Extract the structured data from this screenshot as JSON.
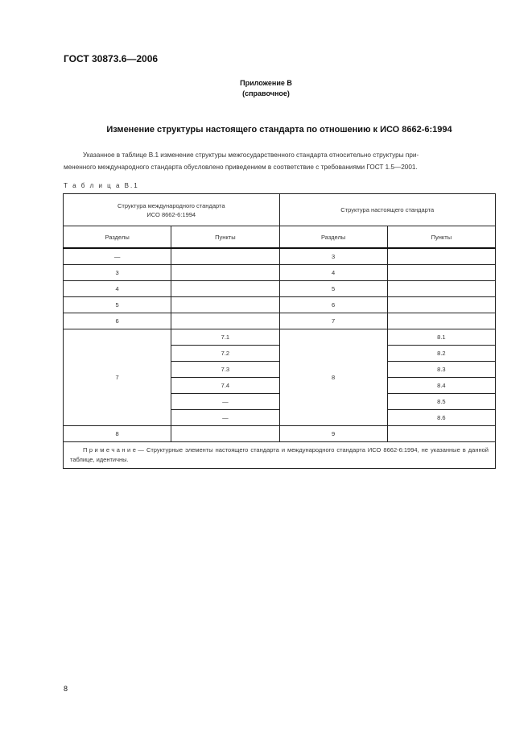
{
  "header": {
    "doc_code": "ГОСТ 30873.6—2006"
  },
  "annex": {
    "title": "Приложение В",
    "status": "(справочное)"
  },
  "title": "Изменение структуры настоящего стандарта по отношению к ИСО 8662-6:1994",
  "paragraph": {
    "line1": "Указанное в таблице В.1 изменение структуры межгосударственного стандарта относительно структуры при-",
    "line2": "мененного международного стандарта обусловлено приведением в соответствие с требованиями ГОСТ 1.5—2001."
  },
  "table": {
    "caption": "Т а б л и ц а  В.1",
    "group_headers": [
      "Структура международного стандарта ИСО 8662-6:1994",
      "Структура настоящего стандарта"
    ],
    "group_header_lines": [
      "Структура международного стандарта",
      "ИСО 8662-6:1994"
    ],
    "columns": [
      "Разделы",
      "Пункты",
      "Разделы",
      "Пункты"
    ],
    "simple_rows": [
      [
        "—",
        "",
        "3",
        ""
      ],
      [
        "3",
        "",
        "4",
        ""
      ],
      [
        "4",
        "",
        "5",
        ""
      ],
      [
        "5",
        "",
        "6",
        ""
      ],
      [
        "6",
        "",
        "7",
        ""
      ]
    ],
    "merged_block": {
      "intl_section": "7",
      "intl_items": [
        "7.1",
        "7.2",
        "7.3",
        "7.4",
        "—",
        "—"
      ],
      "this_section": "8",
      "this_items": [
        "8.1",
        "8.2",
        "8.3",
        "8.4",
        "8.5",
        "8.6"
      ]
    },
    "last_row": [
      "8",
      "",
      "9",
      ""
    ],
    "note": {
      "label": "Примечание",
      "text": "— Структурные элементы настоящего стандарта и международного стандарта ИСО 8662-6:1994, не указанные в данной таблице, идентичны."
    }
  },
  "page_number": "8"
}
